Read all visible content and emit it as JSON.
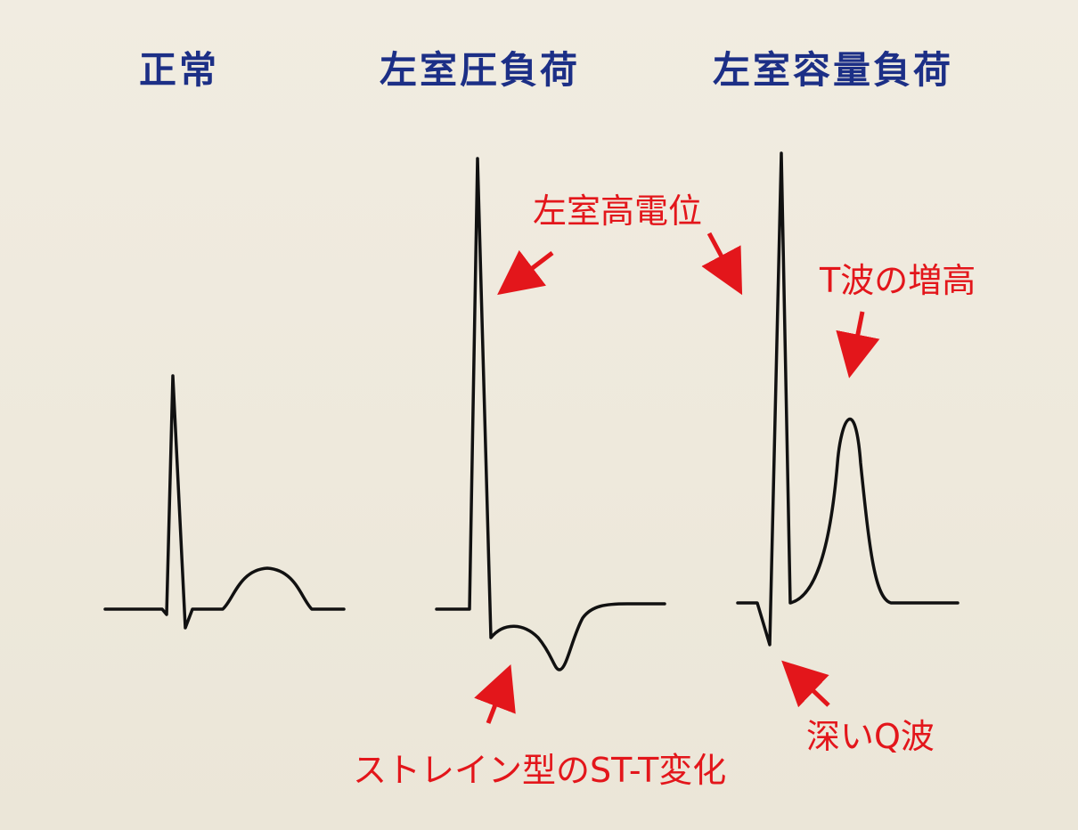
{
  "headings": {
    "normal": "正常",
    "lv_pressure_overload": "左室圧負荷",
    "lv_volume_overload": "左室容量負荷"
  },
  "annotations": {
    "lv_high_voltage": "左室高電位",
    "t_wave_tall": "T波の増高",
    "deep_q_wave": "深いQ波",
    "strain_st_t": "ストレイン型のST-T変化"
  },
  "colors": {
    "heading": "#1c2f86",
    "annotation": "#e3161b",
    "trace": "#111111",
    "background": "#efeade"
  }
}
